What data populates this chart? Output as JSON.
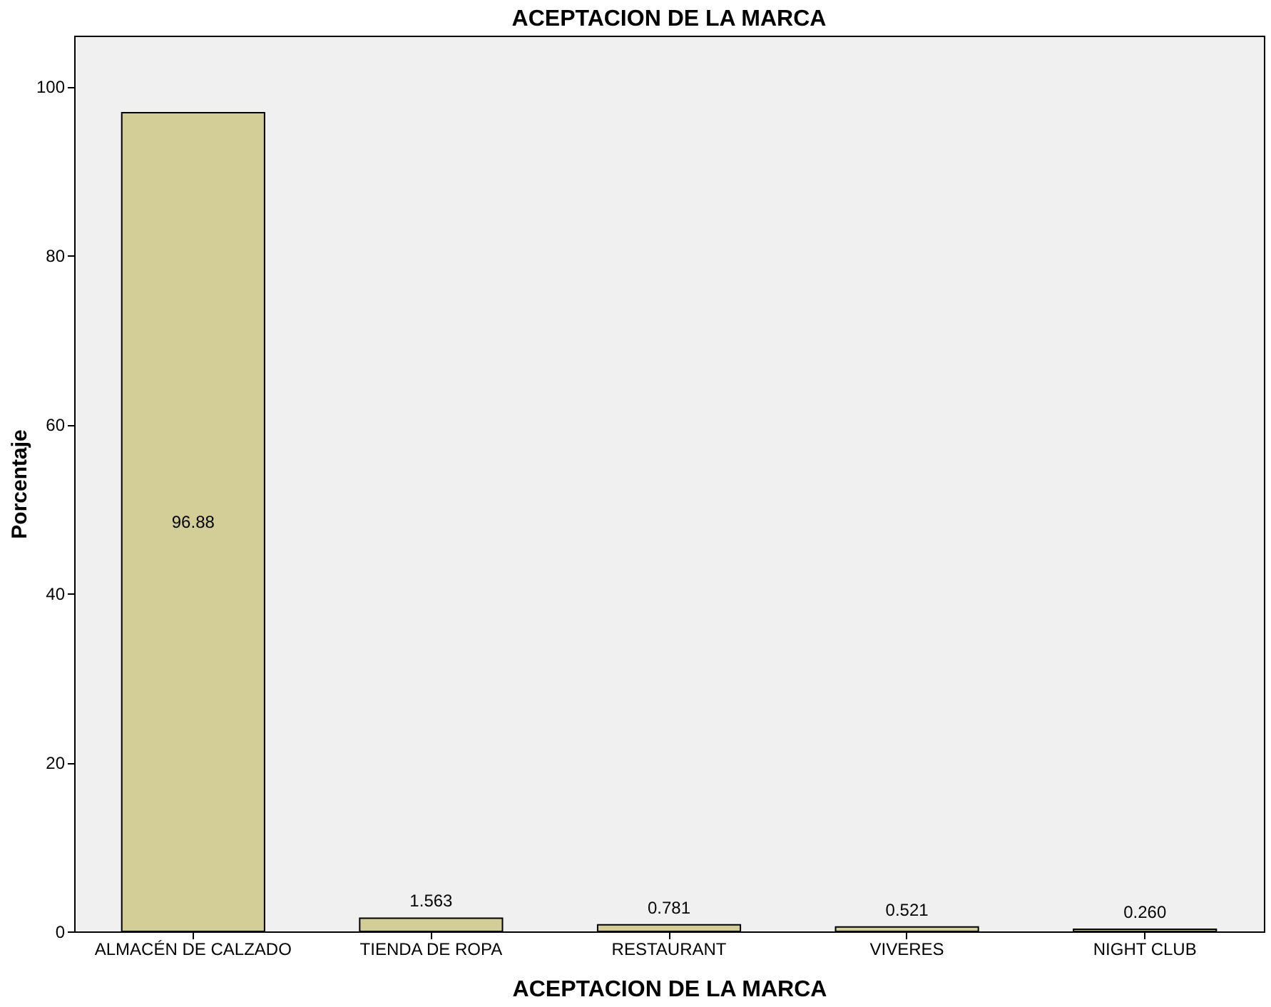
{
  "chart_data": {
    "type": "bar",
    "title": "ACEPTACION DE LA MARCA",
    "xlabel": "ACEPTACION DE LA MARCA",
    "ylabel": "Porcentaje",
    "categories": [
      "ALMACÉN DE CALZADO",
      "TIENDA DE ROPA",
      "RESTAURANT",
      "VIVERES",
      "NIGHT CLUB"
    ],
    "values": [
      96.88,
      1.563,
      0.781,
      0.521,
      0.26
    ],
    "value_labels": [
      "96.88",
      "1.563",
      "0.781",
      "0.521",
      "0.260"
    ],
    "color": "#d3ce97",
    "ylim": [
      0,
      106
    ],
    "yticks": [
      0,
      20,
      40,
      60,
      80,
      100
    ],
    "grid": false
  }
}
